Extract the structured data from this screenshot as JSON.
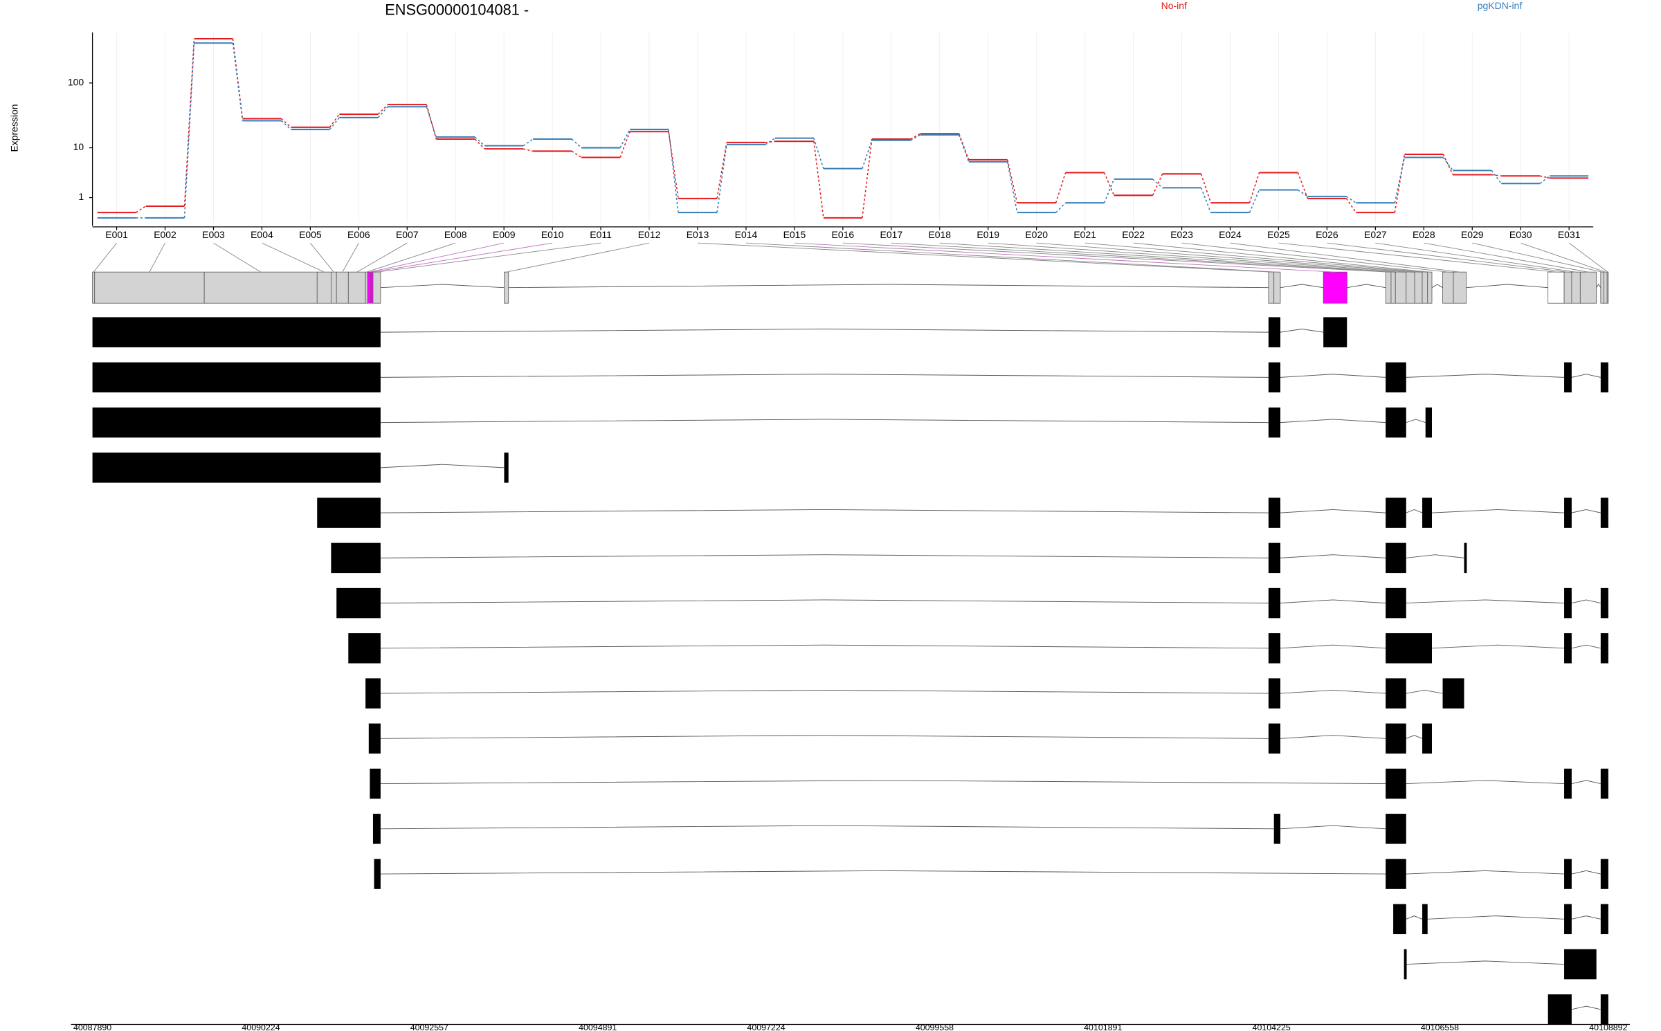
{
  "chart_data": [
    {
      "type": "line",
      "title": "ENSG00000104081 -",
      "ylabel": "Expression",
      "categories": [
        "E001",
        "E002",
        "E003",
        "E004",
        "E005",
        "E006",
        "E007",
        "E008",
        "E009",
        "E010",
        "E011",
        "E012",
        "E013",
        "E014",
        "E015",
        "E016",
        "E017",
        "E018",
        "E019",
        "E020",
        "E021",
        "E022",
        "E023",
        "E024",
        "E025",
        "E026",
        "E027",
        "E028",
        "E029",
        "E030",
        "E031"
      ],
      "series": [
        {
          "name": "No-inf",
          "color": "#e41a1c",
          "values": [
            0.2,
            0.49,
            458,
            28.8,
            21.2,
            33.6,
            47.2,
            13.8,
            9.6,
            8.8,
            6.9,
            18.1,
            0.94,
            12.2,
            12.7,
            0,
            13.8,
            16.8,
            6.3,
            0.67,
            3.7,
            1.16,
            3.5,
            0.67,
            3.7,
            0.94,
            0.2,
            7.8,
            3.37,
            3.2,
            2.9
          ]
        },
        {
          "name": "pgKDN-inf",
          "color": "#377eb8",
          "values": [
            0,
            0,
            395,
            26.7,
            19.6,
            29.9,
            43.8,
            14.9,
            10.8,
            13.8,
            10.0,
            19.6,
            0.2,
            11.3,
            14.3,
            4.4,
            13.2,
            16.1,
            5.8,
            0.2,
            0.67,
            2.76,
            1.8,
            0.2,
            1.6,
            1.08,
            0.67,
            6.9,
            4.06,
            2.24,
            3.2
          ]
        }
      ],
      "ylim": [
        -0.15,
        570
      ],
      "yticks": [
        1,
        10,
        100
      ],
      "yscale": "log1p",
      "grid": true
    },
    {
      "type": "gene-model",
      "xlim": [
        40087890,
        40108892
      ],
      "xticks": [
        40087890,
        40090224,
        40092557,
        40094891,
        40097224,
        40099558,
        40101891,
        40104225,
        40106558,
        40108892
      ],
      "exons": [
        {
          "start": 40087890,
          "end": 40087920,
          "color": "#d3d3d3"
        },
        {
          "start": 40087920,
          "end": 40089439,
          "color": "#d3d3d3"
        },
        {
          "start": 40089439,
          "end": 40091003,
          "color": "#d3d3d3"
        },
        {
          "start": 40091003,
          "end": 40091196,
          "color": "#d3d3d3"
        },
        {
          "start": 40091196,
          "end": 40091271,
          "color": "#d3d3d3"
        },
        {
          "start": 40091271,
          "end": 40091435,
          "color": "#d3d3d3"
        },
        {
          "start": 40091435,
          "end": 40091673,
          "color": "#d3d3d3"
        },
        {
          "start": 40091673,
          "end": 40091703,
          "color": "#d3d3d3"
        },
        {
          "start": 40091703,
          "end": 40091748,
          "color": "#ff00ff"
        },
        {
          "start": 40091748,
          "end": 40091777,
          "color": "#ff00ff"
        },
        {
          "start": 40091777,
          "end": 40091882,
          "color": "#d3d3d3"
        },
        {
          "start": 40093594,
          "end": 40093654,
          "color": "#d3d3d3"
        },
        {
          "start": 40104184,
          "end": 40104259,
          "color": "#d3d3d3"
        },
        {
          "start": 40104259,
          "end": 40104348,
          "color": "#d3d3d3"
        },
        {
          "start": 40104944,
          "end": 40105271,
          "color": "#ff00ff"
        },
        {
          "start": 40105807,
          "end": 40105882,
          "color": "#d3d3d3"
        },
        {
          "start": 40105882,
          "end": 40105942,
          "color": "#d3d3d3"
        },
        {
          "start": 40105942,
          "end": 40106091,
          "color": "#d3d3d3"
        },
        {
          "start": 40106091,
          "end": 40106210,
          "color": "#d3d3d3"
        },
        {
          "start": 40106210,
          "end": 40106314,
          "color": "#d3d3d3"
        },
        {
          "start": 40106314,
          "end": 40106388,
          "color": "#d3d3d3"
        },
        {
          "start": 40106388,
          "end": 40106448,
          "color": "#d3d3d3"
        },
        {
          "start": 40106597,
          "end": 40106746,
          "color": "#d3d3d3"
        },
        {
          "start": 40106746,
          "end": 40106924,
          "color": "#d3d3d3"
        },
        {
          "start": 40108056,
          "end": 40108280,
          "color": "#ffffff"
        },
        {
          "start": 40108280,
          "end": 40108384,
          "color": "#d3d3d3"
        },
        {
          "start": 40108384,
          "end": 40108503,
          "color": "#d3d3d3"
        },
        {
          "start": 40108503,
          "end": 40108727,
          "color": "#d3d3d3"
        },
        {
          "start": 40108786,
          "end": 40108831,
          "color": "#d3d3d3"
        },
        {
          "start": 40108831,
          "end": 40108876,
          "color": "#d3d3d3"
        },
        {
          "start": 40108876,
          "end": 40108892,
          "color": "#d3d3d3"
        }
      ],
      "transcripts": [
        [
          [
            40087890,
            40091882
          ],
          [
            40104184,
            40104348
          ],
          [
            40104944,
            40105271
          ]
        ],
        [
          [
            40087890,
            40091882
          ],
          [
            40104184,
            40104348
          ],
          [
            40105807,
            40106091
          ],
          [
            40108280,
            40108384
          ],
          [
            40108786,
            40108892
          ]
        ],
        [
          [
            40087890,
            40091882
          ],
          [
            40104184,
            40104348
          ],
          [
            40105807,
            40106091
          ],
          [
            40106359,
            40106448
          ]
        ],
        [
          [
            40087890,
            40091882
          ],
          [
            40093594,
            40093654
          ]
        ],
        [
          [
            40091003,
            40091882
          ],
          [
            40104184,
            40104348
          ],
          [
            40105807,
            40106091
          ],
          [
            40106314,
            40106448
          ],
          [
            40108280,
            40108384
          ],
          [
            40108786,
            40108892
          ]
        ],
        [
          [
            40091196,
            40091882
          ],
          [
            40104184,
            40104348
          ],
          [
            40105807,
            40106091
          ],
          [
            40106894,
            40106924
          ]
        ],
        [
          [
            40091271,
            40091882
          ],
          [
            40104184,
            40104348
          ],
          [
            40105807,
            40106091
          ],
          [
            40108280,
            40108384
          ],
          [
            40108786,
            40108892
          ]
        ],
        [
          [
            40091435,
            40091882
          ],
          [
            40104184,
            40104348
          ],
          [
            40105807,
            40106448
          ],
          [
            40108280,
            40108384
          ],
          [
            40108786,
            40108892
          ]
        ],
        [
          [
            40091673,
            40091882
          ],
          [
            40104184,
            40104348
          ],
          [
            40105807,
            40106091
          ],
          [
            40106597,
            40106894
          ]
        ],
        [
          [
            40091718,
            40091882
          ],
          [
            40104184,
            40104348
          ],
          [
            40105807,
            40106091
          ],
          [
            40106314,
            40106448
          ]
        ],
        [
          [
            40091733,
            40091882
          ],
          [
            40105807,
            40106091
          ],
          [
            40108280,
            40108384
          ],
          [
            40108786,
            40108892
          ]
        ],
        [
          [
            40091777,
            40091882
          ],
          [
            40104259,
            40104348
          ],
          [
            40105807,
            40106091
          ]
        ],
        [
          [
            40091792,
            40091882
          ],
          [
            40105807,
            40106091
          ],
          [
            40108280,
            40108384
          ],
          [
            40108786,
            40108892
          ]
        ],
        [
          [
            40105912,
            40106091
          ],
          [
            40106314,
            40106388
          ],
          [
            40108280,
            40108384
          ],
          [
            40108786,
            40108892
          ]
        ],
        [
          [
            40106061,
            40106091
          ],
          [
            40108280,
            40108727
          ]
        ],
        [
          [
            40108056,
            40108384
          ],
          [
            40108786,
            40108892
          ]
        ]
      ]
    }
  ]
}
